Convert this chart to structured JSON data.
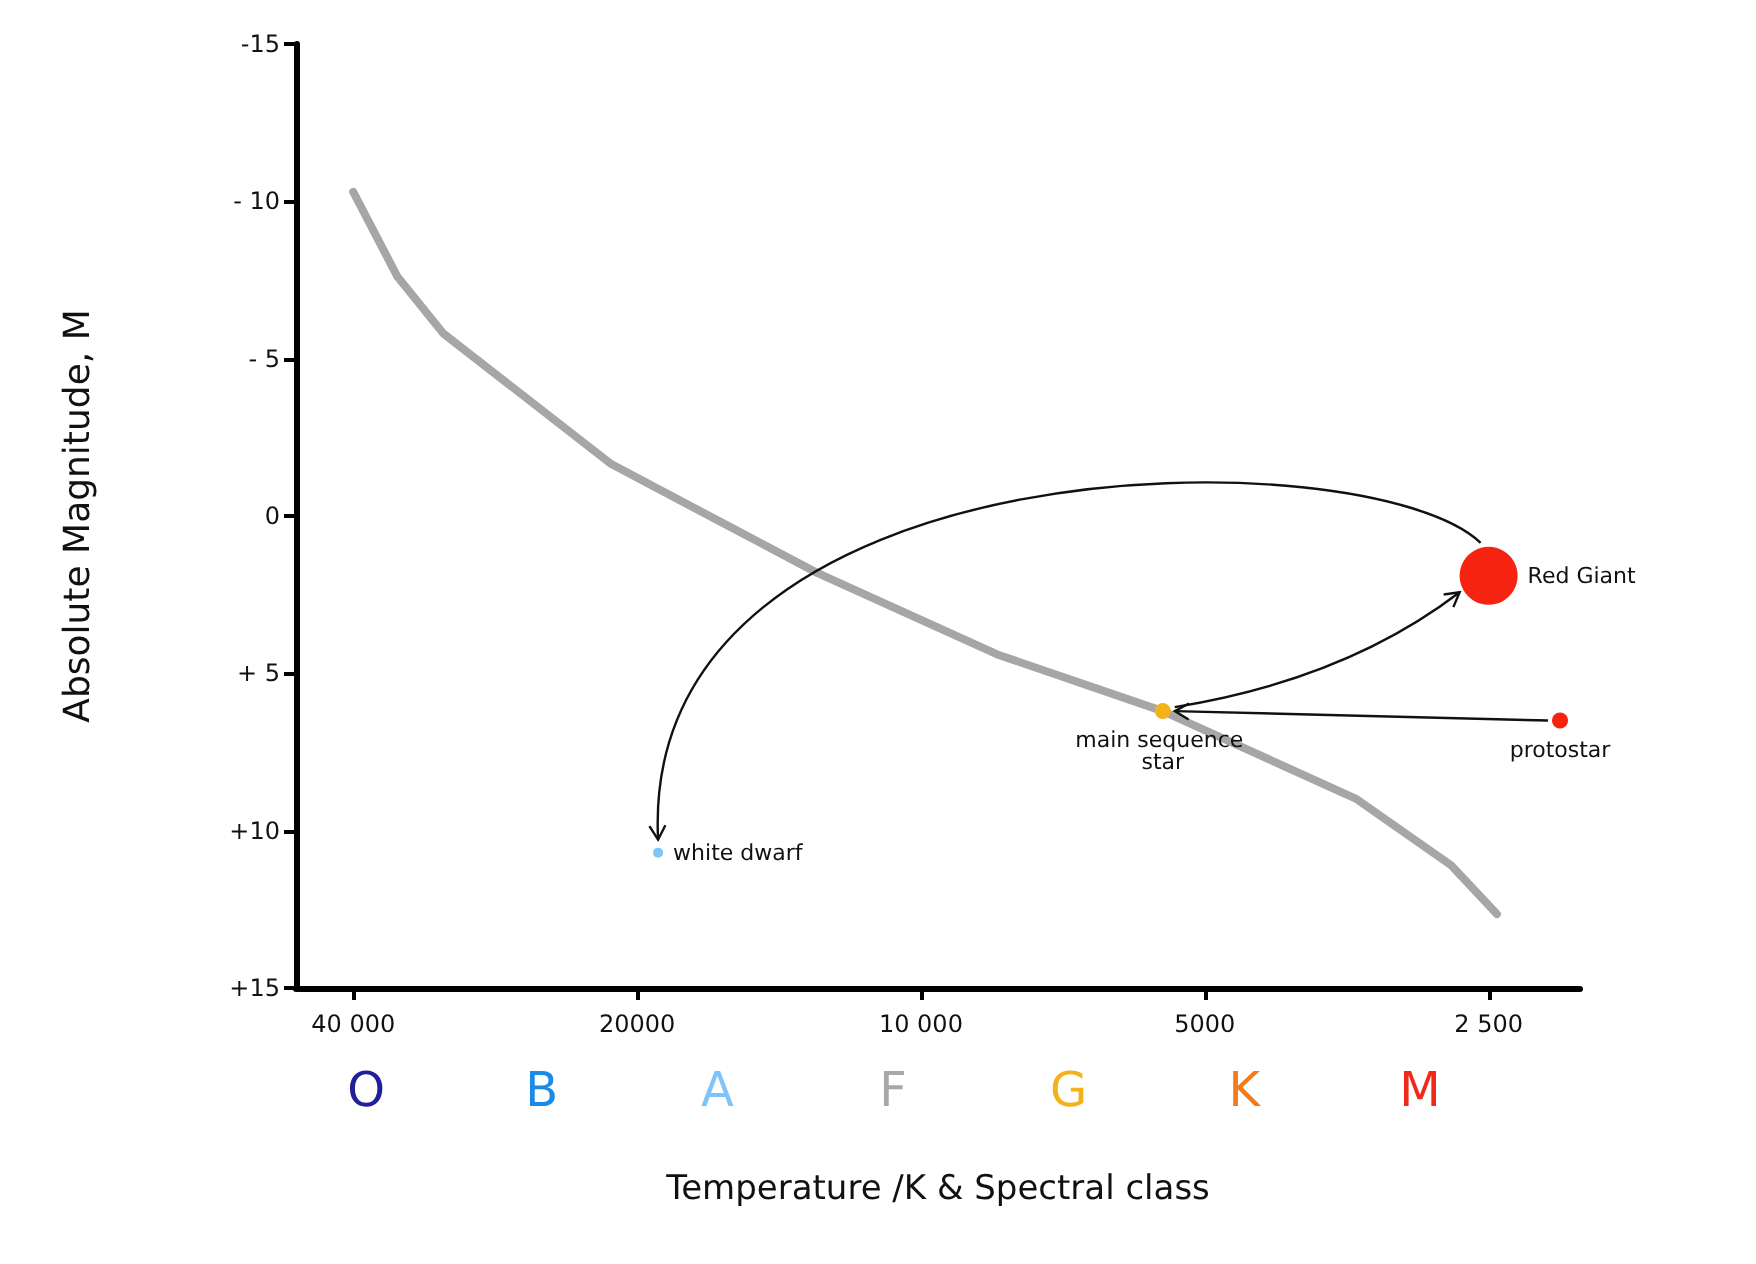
{
  "chart_data": {
    "type": "line",
    "xlabel": "Temperature /K & Spectral class",
    "ylabel": "Absolute Magnitude, M",
    "log": "x",
    "xlim": [
      46000,
      2000
    ],
    "ylim": [
      15,
      -15
    ],
    "xticks": [
      {
        "value": 40000,
        "label": "40 000"
      },
      {
        "value": 20000,
        "label": "20000"
      },
      {
        "value": 10000,
        "label": "10 000"
      },
      5000,
      {
        "value": 2500,
        "label": "2 500"
      }
    ],
    "yticks": [
      {
        "value": -15,
        "label": "-15"
      },
      {
        "value": -10,
        "label": "- 10"
      },
      {
        "value": -5,
        "label": "- 5"
      },
      0,
      {
        "value": 5,
        "label": "+ 5"
      },
      {
        "value": 10,
        "label": "+10"
      },
      {
        "value": 15,
        "label": "+15"
      }
    ],
    "grid": false,
    "legend": false,
    "series": [
      {
        "color": "#a6a6a6",
        "marker": "none",
        "line_style": "solid",
        "x": [
          40000,
          35900,
          32100,
          21300,
          12900,
          8300,
          5540,
          3450,
          2740,
          2450
        ],
        "values": [
          -10.3,
          -7.6,
          -5.8,
          -1.65,
          1.8,
          4.4,
          6.2,
          9.0,
          11.1,
          12.65
        ]
      },
      {
        "type": "bubble",
        "name": "main sequence star",
        "color": "#f4b21a",
        "x": [
          5540
        ],
        "values": [
          6.2
        ],
        "sizes": [
          0.076
        ]
      },
      {
        "type": "bubble",
        "name": "Red Giant",
        "color": "#f5230f",
        "x": [
          2500
        ],
        "values": [
          1.9
        ],
        "sizes": [
          1
        ]
      },
      {
        "type": "bubble",
        "name": "protostar",
        "color": "#f5230f",
        "x": [
          2100
        ],
        "values": [
          6.5
        ],
        "sizes": [
          0.076
        ]
      },
      {
        "type": "bubble",
        "name": "white dwarf",
        "color": "#7ec4f8",
        "x": [
          19000
        ],
        "values": [
          10.7
        ],
        "sizes": [
          0.03
        ]
      }
    ],
    "annotations": [
      "O",
      "B",
      "A",
      "F",
      "G",
      "K",
      "M"
    ]
  }
}
